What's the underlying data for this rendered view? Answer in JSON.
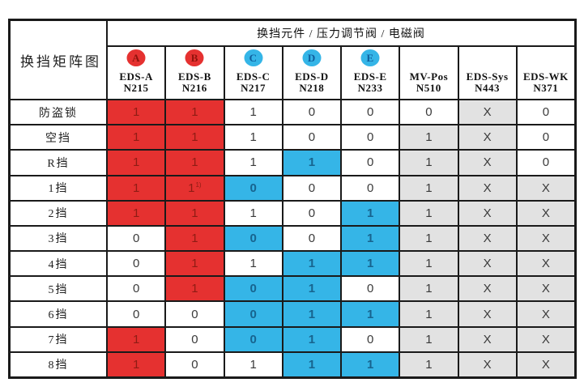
{
  "page": {
    "background": "#ffffff"
  },
  "chart_data": {
    "type": "table",
    "title": "换挡矩阵图",
    "header_title": "换挡元件 / 压力调节阀 / 电磁阀",
    "columns": [
      {
        "badge": "A",
        "badge_color": "red",
        "name": "EDS-A",
        "code": "N215"
      },
      {
        "badge": "B",
        "badge_color": "red",
        "name": "EDS-B",
        "code": "N216"
      },
      {
        "badge": "C",
        "badge_color": "blue",
        "name": "EDS-C",
        "code": "N217"
      },
      {
        "badge": "D",
        "badge_color": "blue",
        "name": "EDS-D",
        "code": "N218"
      },
      {
        "badge": "E",
        "badge_color": "blue",
        "name": "EDS-E",
        "code": "N233"
      },
      {
        "badge": "",
        "badge_color": "",
        "name": "MV-Pos",
        "code": "N510"
      },
      {
        "badge": "",
        "badge_color": "",
        "name": "EDS-Sys",
        "code": "N443"
      },
      {
        "badge": "",
        "badge_color": "",
        "name": "EDS-WK",
        "code": "N371"
      }
    ],
    "rows": [
      {
        "label": "防盗锁",
        "cells": [
          {
            "v": "1",
            "bg": "red"
          },
          {
            "v": "1",
            "bg": "red"
          },
          {
            "v": "1",
            "bg": "white"
          },
          {
            "v": "0",
            "bg": "white"
          },
          {
            "v": "0",
            "bg": "white"
          },
          {
            "v": "0",
            "bg": "white"
          },
          {
            "v": "X",
            "bg": "gray"
          },
          {
            "v": "0",
            "bg": "white"
          }
        ]
      },
      {
        "label": "空挡",
        "cells": [
          {
            "v": "1",
            "bg": "red"
          },
          {
            "v": "1",
            "bg": "red"
          },
          {
            "v": "1",
            "bg": "white"
          },
          {
            "v": "0",
            "bg": "white"
          },
          {
            "v": "0",
            "bg": "white"
          },
          {
            "v": "1",
            "bg": "gray"
          },
          {
            "v": "X",
            "bg": "gray"
          },
          {
            "v": "0",
            "bg": "white"
          }
        ]
      },
      {
        "label": "R挡",
        "cells": [
          {
            "v": "1",
            "bg": "red"
          },
          {
            "v": "1",
            "bg": "red"
          },
          {
            "v": "1",
            "bg": "white"
          },
          {
            "v": "1",
            "bg": "blue"
          },
          {
            "v": "0",
            "bg": "white"
          },
          {
            "v": "1",
            "bg": "gray"
          },
          {
            "v": "X",
            "bg": "gray"
          },
          {
            "v": "0",
            "bg": "white"
          }
        ]
      },
      {
        "label": "1挡",
        "cells": [
          {
            "v": "1",
            "bg": "red"
          },
          {
            "v": "1",
            "sup": "1)",
            "bg": "red"
          },
          {
            "v": "0",
            "bg": "blue"
          },
          {
            "v": "0",
            "bg": "white"
          },
          {
            "v": "0",
            "bg": "white"
          },
          {
            "v": "1",
            "bg": "gray"
          },
          {
            "v": "X",
            "bg": "gray"
          },
          {
            "v": "X",
            "bg": "gray"
          }
        ]
      },
      {
        "label": "2挡",
        "cells": [
          {
            "v": "1",
            "bg": "red"
          },
          {
            "v": "1",
            "bg": "red"
          },
          {
            "v": "1",
            "bg": "white"
          },
          {
            "v": "0",
            "bg": "white"
          },
          {
            "v": "1",
            "bg": "blue"
          },
          {
            "v": "1",
            "bg": "gray"
          },
          {
            "v": "X",
            "bg": "gray"
          },
          {
            "v": "X",
            "bg": "gray"
          }
        ]
      },
      {
        "label": "3挡",
        "cells": [
          {
            "v": "0",
            "bg": "white"
          },
          {
            "v": "1",
            "bg": "red"
          },
          {
            "v": "0",
            "bg": "blue"
          },
          {
            "v": "0",
            "bg": "white"
          },
          {
            "v": "1",
            "bg": "blue"
          },
          {
            "v": "1",
            "bg": "gray"
          },
          {
            "v": "X",
            "bg": "gray"
          },
          {
            "v": "X",
            "bg": "gray"
          }
        ]
      },
      {
        "label": "4挡",
        "cells": [
          {
            "v": "0",
            "bg": "white"
          },
          {
            "v": "1",
            "bg": "red"
          },
          {
            "v": "1",
            "bg": "white"
          },
          {
            "v": "1",
            "bg": "blue"
          },
          {
            "v": "1",
            "bg": "blue"
          },
          {
            "v": "1",
            "bg": "gray"
          },
          {
            "v": "X",
            "bg": "gray"
          },
          {
            "v": "X",
            "bg": "gray"
          }
        ]
      },
      {
        "label": "5挡",
        "cells": [
          {
            "v": "0",
            "bg": "white"
          },
          {
            "v": "1",
            "bg": "red"
          },
          {
            "v": "0",
            "bg": "blue"
          },
          {
            "v": "1",
            "bg": "blue"
          },
          {
            "v": "0",
            "bg": "white"
          },
          {
            "v": "1",
            "bg": "gray"
          },
          {
            "v": "X",
            "bg": "gray"
          },
          {
            "v": "X",
            "bg": "gray"
          }
        ]
      },
      {
        "label": "6挡",
        "cells": [
          {
            "v": "0",
            "bg": "white"
          },
          {
            "v": "0",
            "bg": "white"
          },
          {
            "v": "0",
            "bg": "blue"
          },
          {
            "v": "1",
            "bg": "blue"
          },
          {
            "v": "1",
            "bg": "blue"
          },
          {
            "v": "1",
            "bg": "gray"
          },
          {
            "v": "X",
            "bg": "gray"
          },
          {
            "v": "X",
            "bg": "gray"
          }
        ]
      },
      {
        "label": "7挡",
        "cells": [
          {
            "v": "1",
            "bg": "red"
          },
          {
            "v": "0",
            "bg": "white"
          },
          {
            "v": "0",
            "bg": "blue"
          },
          {
            "v": "1",
            "bg": "blue"
          },
          {
            "v": "0",
            "bg": "white"
          },
          {
            "v": "1",
            "bg": "gray"
          },
          {
            "v": "X",
            "bg": "gray"
          },
          {
            "v": "X",
            "bg": "gray"
          }
        ]
      },
      {
        "label": "8挡",
        "cells": [
          {
            "v": "1",
            "bg": "red"
          },
          {
            "v": "0",
            "bg": "white"
          },
          {
            "v": "1",
            "bg": "white"
          },
          {
            "v": "1",
            "bg": "blue"
          },
          {
            "v": "1",
            "bg": "blue"
          },
          {
            "v": "1",
            "bg": "gray"
          },
          {
            "v": "X",
            "bg": "gray"
          },
          {
            "v": "X",
            "bg": "gray"
          }
        ]
      }
    ],
    "cell_colors": {
      "red": "#e53130",
      "blue": "#35b5e7",
      "gray": "#e2e2e2",
      "white": "#ffffff"
    },
    "badge_colors": {
      "red": "#e53130",
      "blue": "#35b5e7"
    }
  }
}
